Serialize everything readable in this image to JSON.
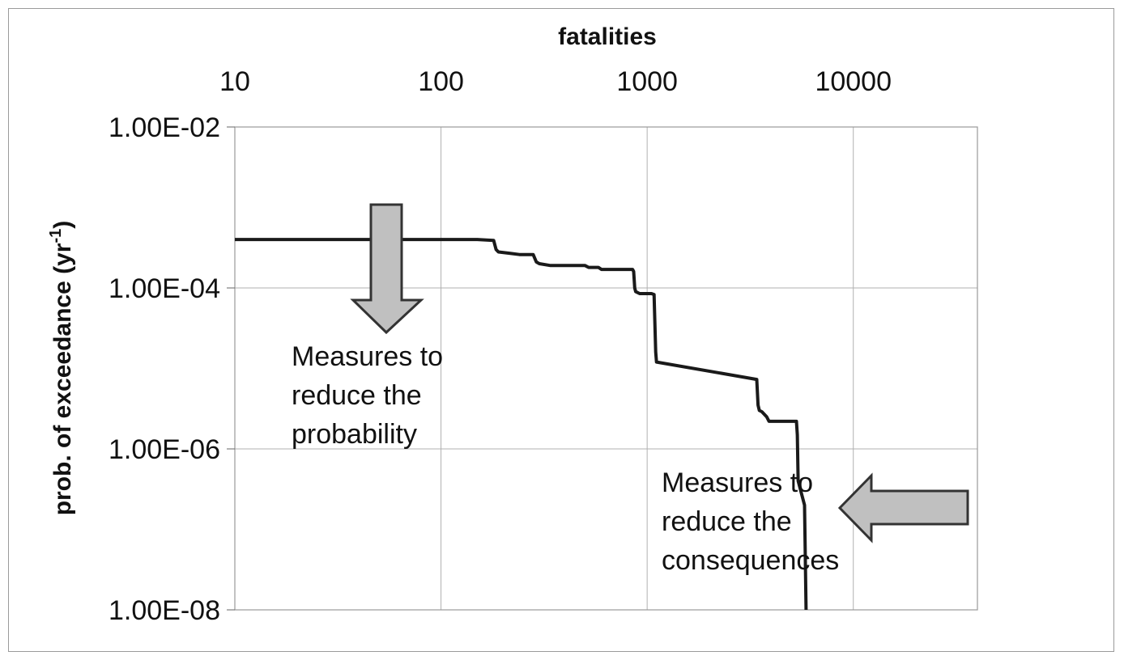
{
  "chart_data": {
    "type": "line",
    "title": "",
    "xlabel": "fatalities",
    "ylabel_main": "prob. of exceedance (yr",
    "ylabel_sup": "-1",
    "ylabel_end": ")",
    "x_scale": "log",
    "y_scale": "log",
    "xlim": [
      10,
      40000
    ],
    "ylim": [
      1e-08,
      0.01
    ],
    "x_tick_values": [
      10,
      100,
      1000,
      10000
    ],
    "x_tick_labels": [
      "10",
      "100",
      "1000",
      "10000"
    ],
    "x_axis_position": "top",
    "y_tick_values": [
      0.01,
      0.0001,
      1e-06,
      1e-08
    ],
    "y_tick_labels": [
      "1.00E-02",
      "1.00E-04",
      "1.00E-06",
      "1.00E-08"
    ],
    "grid": true,
    "series": [
      {
        "line_color": "#1a1a1a",
        "x": [
          10,
          150,
          180,
          185,
          190,
          215,
          240,
          280,
          290,
          300,
          340,
          500,
          520,
          580,
          600,
          850,
          860,
          870,
          880,
          920,
          1050,
          1080,
          1100,
          1110,
          3400,
          3450,
          3500,
          3600,
          3800,
          3900,
          5300,
          5350,
          5400,
          5800,
          5900
        ],
        "y": [
          0.0004,
          0.0004,
          0.00039,
          0.0003,
          0.00028,
          0.00027,
          0.00026,
          0.00026,
          0.00021,
          0.0002,
          0.00019,
          0.00019,
          0.00018,
          0.00018,
          0.00017,
          0.00017,
          0.00016,
          0.0001,
          9e-05,
          8.5e-05,
          8.5e-05,
          8.3e-05,
          1.6e-05,
          1.2e-05,
          7.3e-06,
          3.5e-06,
          3e-06,
          2.9e-06,
          2.5e-06,
          2.2e-06,
          2.2e-06,
          1.5e-06,
          4e-07,
          2e-07,
          1e-08
        ]
      }
    ],
    "annotations": [
      {
        "lines": [
          "Measures to",
          "reduce the",
          "probability"
        ],
        "arrow": "down"
      },
      {
        "lines": [
          "Measures to",
          "reduce the",
          "consequences"
        ],
        "arrow": "left"
      }
    ],
    "arrow_fill": "#c0c0c0",
    "arrow_stroke": "#333333",
    "grid_color": "#b0b0b0"
  }
}
